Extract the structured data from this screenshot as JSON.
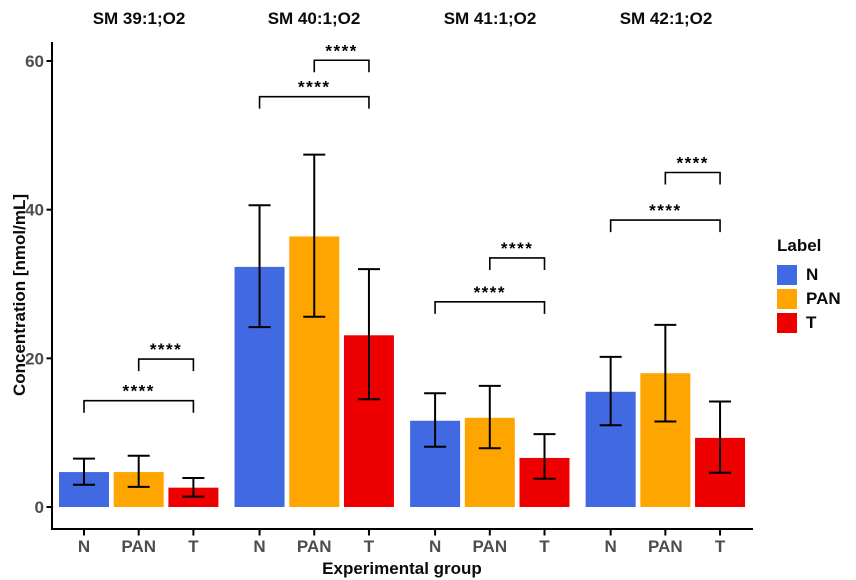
{
  "chart_data": {
    "type": "bar",
    "title": "",
    "xlabel": "Experimental group",
    "ylabel": "Concentration [nmol/mL]",
    "yticks": [
      0,
      20,
      40,
      60
    ],
    "ylim": [
      0,
      63
    ],
    "grid": false,
    "groups": [
      "N",
      "PAN",
      "T"
    ],
    "series_colors": {
      "N": "#4169E1",
      "PAN": "#FFA500",
      "T": "#EE0000"
    },
    "axis_text_color": "#4d4d4d",
    "line_color": "#000000",
    "legend": {
      "title": "Label",
      "position": "right",
      "entries": [
        "N",
        "PAN",
        "T"
      ]
    },
    "facets": [
      {
        "label": "SM 39:1;O2",
        "bars": [
          {
            "group": "N",
            "value": 4.7,
            "err_low": 3.0,
            "err_high": 6.5
          },
          {
            "group": "PAN",
            "value": 4.7,
            "err_low": 2.7,
            "err_high": 6.9
          },
          {
            "group": "T",
            "value": 2.6,
            "err_low": 1.4,
            "err_high": 3.9
          }
        ],
        "significance": [
          {
            "from": "N",
            "to": "T",
            "label": "****",
            "y": 14.3
          },
          {
            "from": "PAN",
            "to": "T",
            "label": "****",
            "y": 19.9
          }
        ]
      },
      {
        "label": "SM 40:1;O2",
        "bars": [
          {
            "group": "N",
            "value": 32.3,
            "err_low": 24.2,
            "err_high": 40.6
          },
          {
            "group": "PAN",
            "value": 36.4,
            "err_low": 25.6,
            "err_high": 47.4
          },
          {
            "group": "T",
            "value": 23.1,
            "err_low": 14.5,
            "err_high": 32.0
          }
        ],
        "significance": [
          {
            "from": "N",
            "to": "T",
            "label": "****",
            "y": 55.2
          },
          {
            "from": "PAN",
            "to": "T",
            "label": "****",
            "y": 60.1
          }
        ]
      },
      {
        "label": "SM 41:1;O2",
        "bars": [
          {
            "group": "N",
            "value": 11.6,
            "err_low": 8.1,
            "err_high": 15.3
          },
          {
            "group": "PAN",
            "value": 12.0,
            "err_low": 7.9,
            "err_high": 16.3
          },
          {
            "group": "T",
            "value": 6.6,
            "err_low": 3.8,
            "err_high": 9.8
          }
        ],
        "significance": [
          {
            "from": "N",
            "to": "T",
            "label": "****",
            "y": 27.6
          },
          {
            "from": "PAN",
            "to": "T",
            "label": "****",
            "y": 33.5
          }
        ]
      },
      {
        "label": "SM 42:1;O2",
        "bars": [
          {
            "group": "N",
            "value": 15.5,
            "err_low": 11.0,
            "err_high": 20.2
          },
          {
            "group": "PAN",
            "value": 18.0,
            "err_low": 11.5,
            "err_high": 24.5
          },
          {
            "group": "T",
            "value": 9.3,
            "err_low": 4.6,
            "err_high": 14.2
          }
        ],
        "significance": [
          {
            "from": "N",
            "to": "T",
            "label": "****",
            "y": 38.6
          },
          {
            "from": "PAN",
            "to": "T",
            "label": "****",
            "y": 45.0
          }
        ]
      }
    ]
  }
}
